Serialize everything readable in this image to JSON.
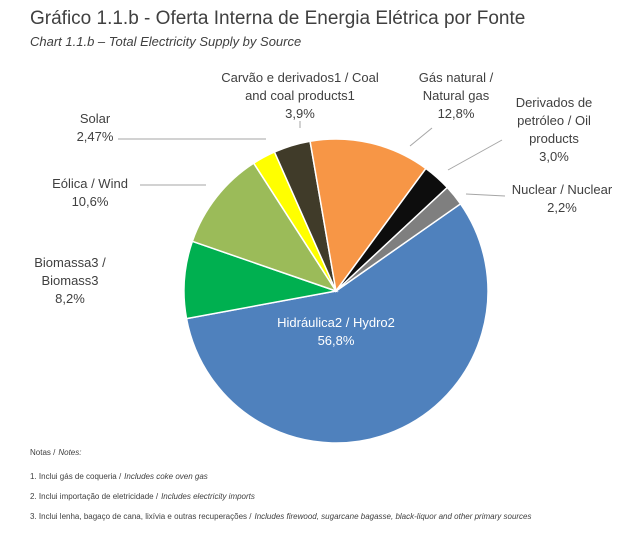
{
  "chart_data": {
    "type": "pie",
    "title": "Gráfico 1.1.b - Oferta Interna de Energia Elétrica por Fonte",
    "subtitle": "Chart 1.1.b – Total Electricity Supply by Source",
    "categories": [
      "Hidráulica2 / Hydro2",
      "Biomassa3 / Biomass3",
      "Eólica / Wind",
      "Solar",
      "Carvão e derivados1 / Coal and coal products1",
      "Gás natural / Natural gas",
      "Derivados de petróleo / Oil products",
      "Nuclear / Nuclear"
    ],
    "values": [
      56.8,
      8.2,
      10.6,
      2.47,
      3.9,
      12.8,
      3.0,
      2.2
    ],
    "value_labels": [
      "56,8%",
      "8,2%",
      "10,6%",
      "2,47%",
      "3,9%",
      "12,8%",
      "3,0%",
      "2,2%"
    ],
    "colors": [
      "#4f81bd",
      "#00b050",
      "#9bbb59",
      "#ffff00",
      "#403b29",
      "#f79646",
      "#0d0d0d",
      "#7f7f7f"
    ],
    "notes_heading": [
      "Notas /",
      "Notes:"
    ],
    "notes": [
      [
        "1. Inclui gás de coqueria /",
        "Includes coke oven gas"
      ],
      [
        "2. Inclui importação de eletricidade /",
        "Includes electricity imports"
      ],
      [
        "3. Inclui lenha, bagaço de cana, lixívia e outras recuperações /",
        "Includes firewood, sugarcane bagasse, black-liquor and other primary sources"
      ]
    ]
  }
}
